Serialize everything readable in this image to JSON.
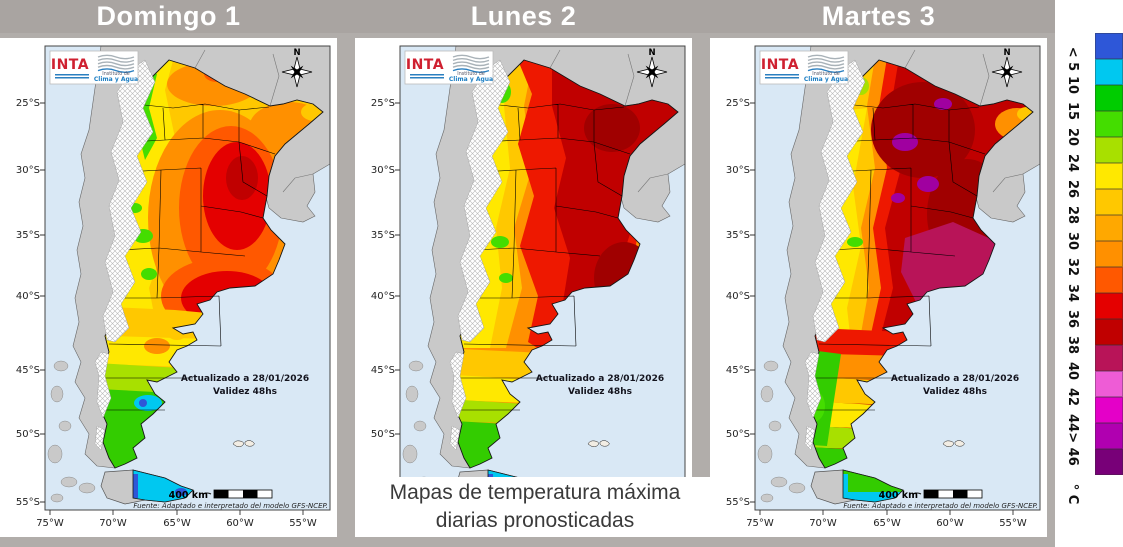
{
  "header": {
    "day_titles": [
      "Domingo 1",
      "Lunes 2",
      "Martes 3"
    ],
    "band_color": "#a9a4a1"
  },
  "caption": {
    "line1": "Mapas de temperatura máxima",
    "line2": "diarias pronosticadas"
  },
  "map_common": {
    "updated": "Actualizado a 28/01/2026",
    "validity": "Validez 48hs",
    "scale_label": "400 km",
    "source": "Fuente: Adaptado e interpretado del modelo GFS-NCEP.",
    "compass_label": "N",
    "logo": {
      "inta": "INTA",
      "institute_line1": "Instituto de",
      "institute_line2": "Clima y Agua"
    },
    "lat_labels": [
      "25°S",
      "30°S",
      "35°S",
      "40°S",
      "45°S",
      "50°S",
      "55°S"
    ],
    "lon_labels": [
      "75°W",
      "70°W",
      "65°W",
      "60°W",
      "55°W"
    ]
  },
  "colorbar": {
    "unit": "° C",
    "tick_labels": [
      "< 5",
      "10",
      "15",
      "20",
      "24",
      "26",
      "28",
      "30",
      "32",
      "34",
      "36",
      "38",
      "40",
      "42",
      "44",
      "> 46"
    ],
    "colors": [
      "#2e57d8",
      "#00c8f0",
      "#00cc00",
      "#44dd00",
      "#a8e000",
      "#ffe800",
      "#ffc800",
      "#ffa800",
      "#ff9000",
      "#ff5800",
      "#e40000",
      "#c00000",
      "#b81458",
      "#ee5cd6",
      "#e400c8",
      "#b000b0",
      "#780078"
    ]
  }
}
